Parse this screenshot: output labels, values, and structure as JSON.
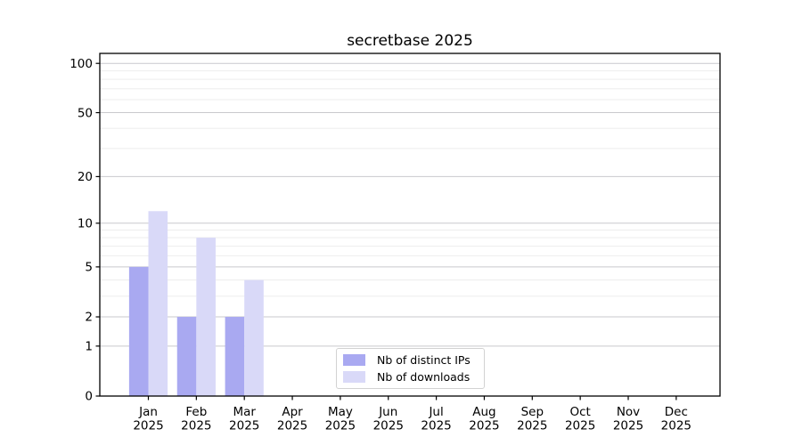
{
  "title": "secretbase 2025",
  "legend": {
    "position": "lower center",
    "items": [
      {
        "label": "Nb of distinct IPs",
        "color": "#a9a9f1"
      },
      {
        "label": "Nb of downloads",
        "color": "#d9d9f8"
      }
    ]
  },
  "colors": {
    "background": "#ffffff",
    "spine": "#000000",
    "grid_major": "#c9c9cd",
    "grid_minor": "#ededed",
    "bar_distinct_ips": "#a9a9f1",
    "bar_downloads": "#d9d9f8",
    "text": "#000000"
  },
  "chart_data": {
    "type": "bar",
    "title": "secretbase 2025",
    "categories": [
      {
        "month": "Jan",
        "year": "2025"
      },
      {
        "month": "Feb",
        "year": "2025"
      },
      {
        "month": "Mar",
        "year": "2025"
      },
      {
        "month": "Apr",
        "year": "2025"
      },
      {
        "month": "May",
        "year": "2025"
      },
      {
        "month": "Jun",
        "year": "2025"
      },
      {
        "month": "Jul",
        "year": "2025"
      },
      {
        "month": "Aug",
        "year": "2025"
      },
      {
        "month": "Sep",
        "year": "2025"
      },
      {
        "month": "Oct",
        "year": "2025"
      },
      {
        "month": "Nov",
        "year": "2025"
      },
      {
        "month": "Dec",
        "year": "2025"
      }
    ],
    "series": [
      {
        "name": "Nb of distinct IPs",
        "color": "#a9a9f1",
        "values": [
          5,
          2,
          2,
          0,
          0,
          0,
          0,
          0,
          0,
          0,
          0,
          0
        ]
      },
      {
        "name": "Nb of downloads",
        "color": "#d9d9f8",
        "values": [
          12,
          8,
          4,
          0,
          0,
          0,
          0,
          0,
          0,
          0,
          0,
          0
        ]
      }
    ],
    "xlabel": "",
    "ylabel": "",
    "y_scale": "log1p",
    "y_ticks": [
      0,
      1,
      2,
      5,
      10,
      20,
      50,
      100
    ],
    "y_minor_ticks": [
      3,
      4,
      6,
      7,
      8,
      9,
      30,
      40,
      60,
      70,
      80,
      90
    ],
    "ylim": [
      0,
      115
    ],
    "grid": "horizontal",
    "legend_position": "lower center"
  }
}
